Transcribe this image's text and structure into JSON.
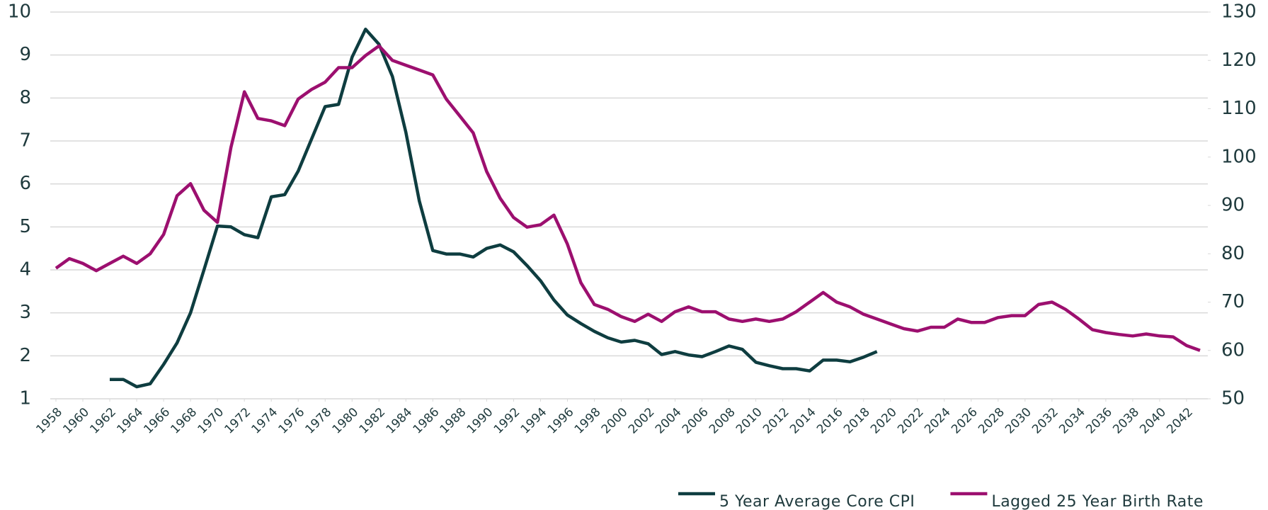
{
  "chart_data": {
    "type": "line",
    "x": [
      1958,
      1959,
      1960,
      1961,
      1962,
      1963,
      1964,
      1965,
      1966,
      1967,
      1968,
      1969,
      1970,
      1971,
      1972,
      1973,
      1974,
      1975,
      1976,
      1977,
      1978,
      1979,
      1980,
      1981,
      1982,
      1983,
      1984,
      1985,
      1986,
      1987,
      1988,
      1989,
      1990,
      1991,
      1992,
      1993,
      1994,
      1995,
      1996,
      1997,
      1998,
      1999,
      2000,
      2001,
      2002,
      2003,
      2004,
      2005,
      2006,
      2007,
      2008,
      2009,
      2010,
      2011,
      2012,
      2013,
      2014,
      2015,
      2016,
      2017,
      2018,
      2019,
      2020,
      2021,
      2022,
      2023,
      2024,
      2025,
      2026,
      2027,
      2028,
      2029,
      2030,
      2031,
      2032,
      2033,
      2034,
      2035,
      2036,
      2037,
      2038,
      2039,
      2040,
      2041,
      2042,
      2043
    ],
    "series": [
      {
        "name": "5 Year Average Core CPI",
        "color": "#0e3d40",
        "axis": "y",
        "values": [
          null,
          null,
          null,
          null,
          1.45,
          1.45,
          1.28,
          1.35,
          1.8,
          2.3,
          3.0,
          4.0,
          5.02,
          5.0,
          4.82,
          4.75,
          5.7,
          5.75,
          6.3,
          7.05,
          7.8,
          7.85,
          8.95,
          9.6,
          9.25,
          8.5,
          7.2,
          5.6,
          4.45,
          4.37,
          4.37,
          4.3,
          4.5,
          4.58,
          4.42,
          4.1,
          3.75,
          3.3,
          2.95,
          2.75,
          2.57,
          2.42,
          2.32,
          2.36,
          2.28,
          2.03,
          2.1,
          2.02,
          1.98,
          2.1,
          2.23,
          2.15,
          1.85,
          1.77,
          1.7,
          1.7,
          1.65,
          1.9,
          1.9,
          1.86,
          1.97,
          2.1,
          null,
          null,
          null,
          null,
          null,
          null,
          null,
          null,
          null,
          null,
          null,
          null,
          null,
          null,
          null,
          null,
          null,
          null,
          null,
          null,
          null,
          null,
          null,
          null
        ]
      },
      {
        "name": "Lagged 25 Year Birth Rate",
        "color": "#9c0f6f",
        "axis": "y2",
        "values": [
          77,
          79,
          78,
          76.5,
          78,
          79.5,
          78,
          80,
          84,
          92,
          94.5,
          89,
          86.5,
          102,
          113.5,
          108,
          107.5,
          106.5,
          112,
          114,
          115.5,
          118.5,
          118.5,
          121,
          123,
          120,
          119,
          118,
          117,
          112,
          108.5,
          105,
          97,
          91.5,
          87.5,
          85.5,
          86,
          88,
          82,
          74,
          69.5,
          68.5,
          67,
          66,
          67.5,
          66,
          68,
          69,
          68,
          68,
          66.5,
          66,
          66.5,
          66,
          66.5,
          68,
          70,
          72,
          70,
          69,
          67.5,
          66.5,
          65.5,
          64.5,
          64,
          64.8,
          64.8,
          66.5,
          65.8,
          65.8,
          66.8,
          67.2,
          67.2,
          69.5,
          70,
          68.5,
          66.5,
          64.3,
          63.7,
          63.3,
          63,
          63.4,
          63,
          62.8,
          61,
          60
        ]
      }
    ],
    "xlim": [
      1958,
      2043
    ],
    "xticks": [
      1958,
      1960,
      1962,
      1964,
      1966,
      1968,
      1970,
      1972,
      1974,
      1976,
      1978,
      1980,
      1982,
      1984,
      1986,
      1988,
      1990,
      1992,
      1994,
      1996,
      1998,
      2000,
      2002,
      2004,
      2006,
      2008,
      2010,
      2012,
      2014,
      2016,
      2018,
      2020,
      2022,
      2024,
      2026,
      2028,
      2030,
      2032,
      2034,
      2036,
      2038,
      2040,
      2042
    ],
    "ylim": [
      1,
      10
    ],
    "yticks": [
      1,
      2,
      3,
      4,
      5,
      6,
      7,
      8,
      9,
      10
    ],
    "y2lim": [
      50,
      130
    ],
    "y2ticks": [
      50,
      60,
      70,
      80,
      90,
      100,
      110,
      120,
      130
    ],
    "grid": true,
    "legend": "bottom-right"
  }
}
